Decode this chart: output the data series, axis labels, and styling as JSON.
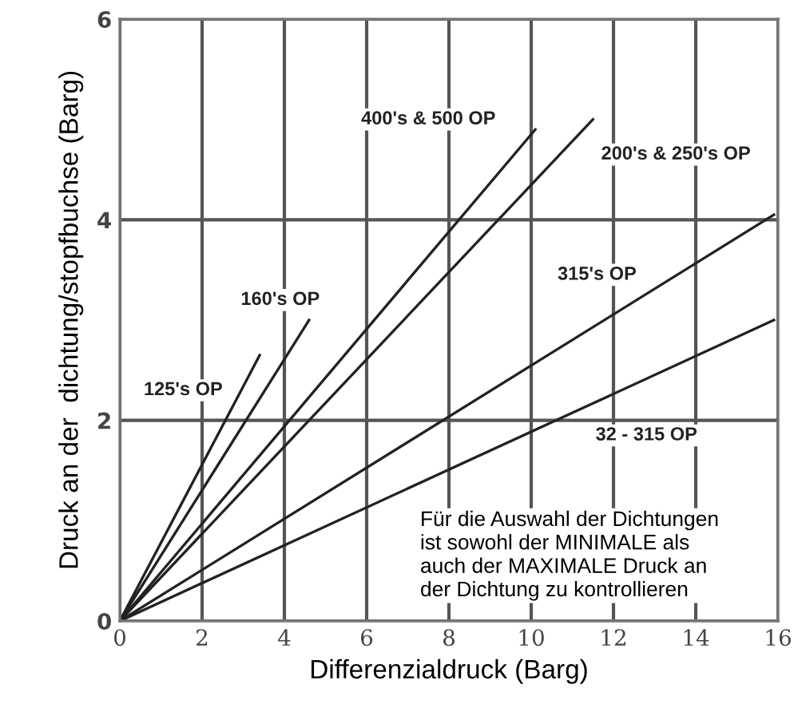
{
  "chart_data": {
    "type": "line",
    "xlabel": "Differenzialdruck (Barg)",
    "ylabel": "Druck an der  dichtung/stopfbuchse (Barg)",
    "xlim": [
      0,
      16
    ],
    "ylim": [
      0,
      6
    ],
    "xticks": [
      0,
      2,
      4,
      6,
      8,
      10,
      12,
      14,
      16
    ],
    "yticks": [
      0,
      2,
      4,
      6
    ],
    "grid": true,
    "legend": false,
    "marker": "none",
    "line_style": "solid",
    "series": [
      {
        "name": "125's OP",
        "color": "#222222",
        "x": [
          0,
          3.4
        ],
        "values": [
          0,
          2.65
        ]
      },
      {
        "name": "160's OP",
        "color": "#222222",
        "x": [
          0,
          4.6
        ],
        "values": [
          0,
          3.0
        ]
      },
      {
        "name": "400's & 500 OP",
        "color": "#222222",
        "x": [
          0,
          10.1
        ],
        "values": [
          0,
          4.9
        ]
      },
      {
        "name": "200's & 250's OP",
        "color": "#222222",
        "x": [
          0,
          11.5
        ],
        "values": [
          0,
          5.0
        ]
      },
      {
        "name": "315's OP",
        "color": "#222222",
        "x": [
          0,
          15.9
        ],
        "values": [
          0,
          4.05
        ]
      },
      {
        "name": "32 - 315 OP",
        "color": "#222222",
        "x": [
          0,
          15.9
        ],
        "values": [
          0,
          3.0
        ]
      }
    ],
    "annotations": [
      "Für die Auswahl der Dichtungen\nist sowohl der MINIMALE als\nauch der MAXIMALE Druck an\nder Dichtung zu kontrollieren"
    ]
  }
}
